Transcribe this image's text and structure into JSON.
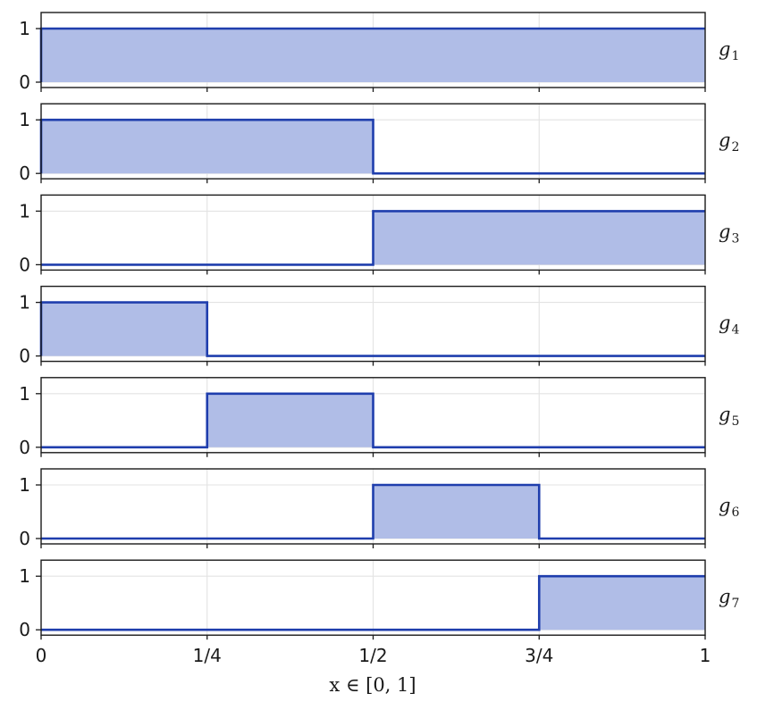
{
  "chart_data": {
    "type": "line",
    "step": true,
    "xlabel": "x ∈ [0, 1]",
    "xlim": [
      0,
      1
    ],
    "ylim": [
      -0.1,
      1.3
    ],
    "x_ticks": [
      0,
      0.25,
      0.5,
      0.75,
      1
    ],
    "x_tick_labels": [
      "0",
      "1/4",
      "1/2",
      "3/4",
      "1"
    ],
    "y_ticks": [
      0,
      1
    ],
    "y_tick_labels": [
      "0",
      "1"
    ],
    "grid": true,
    "fill_under": true,
    "line_color": "#1f3ead",
    "fill_color": "#b0bde7",
    "series": [
      {
        "label_base": "g",
        "label_sub": "1",
        "x": [
          0,
          1
        ],
        "y": [
          1,
          1
        ]
      },
      {
        "label_base": "g",
        "label_sub": "2",
        "x": [
          0,
          0.5,
          0.5,
          1
        ],
        "y": [
          1,
          1,
          0,
          0
        ]
      },
      {
        "label_base": "g",
        "label_sub": "3",
        "x": [
          0,
          0.5,
          0.5,
          1
        ],
        "y": [
          0,
          0,
          1,
          1
        ]
      },
      {
        "label_base": "g",
        "label_sub": "4",
        "x": [
          0,
          0.25,
          0.25,
          1
        ],
        "y": [
          1,
          1,
          0,
          0
        ]
      },
      {
        "label_base": "g",
        "label_sub": "5",
        "x": [
          0,
          0.25,
          0.25,
          0.5,
          0.5,
          1
        ],
        "y": [
          0,
          0,
          1,
          1,
          0,
          0
        ]
      },
      {
        "label_base": "g",
        "label_sub": "6",
        "x": [
          0,
          0.5,
          0.5,
          0.75,
          0.75,
          1
        ],
        "y": [
          0,
          0,
          1,
          1,
          0,
          0
        ]
      },
      {
        "label_base": "g",
        "label_sub": "7",
        "x": [
          0,
          0.75,
          0.75,
          1
        ],
        "y": [
          0,
          0,
          1,
          1
        ]
      }
    ]
  }
}
